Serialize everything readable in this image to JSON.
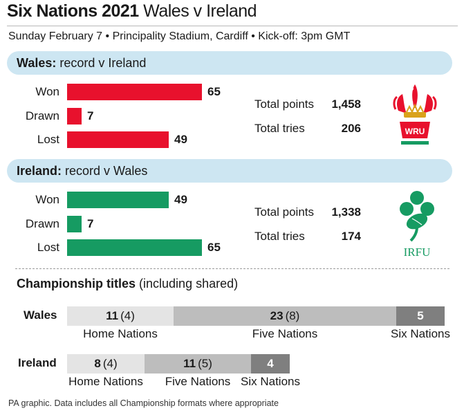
{
  "header": {
    "title_bold": "Six Nations 2021",
    "title_rest": "Wales v Ireland",
    "subtitle": "Sunday February 7 • Principality Stadium, Cardiff • Kick-off: 3pm GMT"
  },
  "colors": {
    "wales": "#e8112d",
    "ireland": "#169b62",
    "band": "#cde6f2",
    "home_nations": "#e4e4e4",
    "five_nations": "#bdbdbd",
    "six_nations": "#7f7f7f"
  },
  "chart_data": [
    {
      "type": "bar",
      "title_bold": "Wales:",
      "title_rest": "record v Ireland",
      "categories": [
        "Won",
        "Drawn",
        "Lost"
      ],
      "values": [
        65,
        7,
        49
      ],
      "totals": [
        {
          "label": "Total points",
          "value": "1,458"
        },
        {
          "label": "Total tries",
          "value": "206"
        }
      ],
      "logo_text": "WRU"
    },
    {
      "type": "bar",
      "title_bold": "Ireland:",
      "title_rest": "record v Wales",
      "categories": [
        "Won",
        "Drawn",
        "Lost"
      ],
      "values": [
        49,
        7,
        65
      ],
      "totals": [
        {
          "label": "Total points",
          "value": "1,338"
        },
        {
          "label": "Total tries",
          "value": "174"
        }
      ],
      "logo_text": "IRFU"
    },
    {
      "type": "bar",
      "stacked": true,
      "title_bold": "Championship titles",
      "title_rest": "(including shared)",
      "teams": [
        {
          "name": "Wales",
          "segments": [
            {
              "format": "Home Nations",
              "titles": 11,
              "shared": "(4)"
            },
            {
              "format": "Five Nations",
              "titles": 23,
              "shared": "(8)"
            },
            {
              "format": "Six Nations",
              "titles": 5,
              "shared": ""
            }
          ]
        },
        {
          "name": "Ireland",
          "segments": [
            {
              "format": "Home Nations",
              "titles": 8,
              "shared": "(4)"
            },
            {
              "format": "Five Nations",
              "titles": 11,
              "shared": "(5)"
            },
            {
              "format": "Six Nations",
              "titles": 4,
              "shared": ""
            }
          ]
        }
      ]
    }
  ],
  "footer": "PA graphic. Data includes all Championship formats where appropriate"
}
